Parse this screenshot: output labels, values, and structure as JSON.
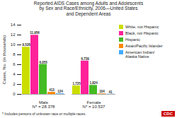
{
  "chart_data": {
    "type": "bar",
    "title": "Reported AIDS Cases among Adults and Adolescents\nby Sex and Race/Ethnicity, 2006—United States\nand Dependent Areas",
    "categories": [
      "Male\nN* = 28,378",
      "Female\nN* = 10,537"
    ],
    "series": [
      {
        "name": "White, not Hispanic",
        "color": "#ccdd00",
        "values": [
          9.528,
          1.725
        ],
        "value_labels": [
          "9,528",
          "1,725"
        ]
      },
      {
        "name": "Black, not Hispanic",
        "color": "#ff2299",
        "values": [
          11.956,
          6.739
        ],
        "value_labels": [
          "11,956",
          "6,739"
        ]
      },
      {
        "name": "Hispanic",
        "color": "#44bb22",
        "values": [
          6.055,
          1.824
        ],
        "value_labels": [
          "6,055",
          "1,824"
        ]
      },
      {
        "name": "Asian/Pacific Islander",
        "color": "#ff8800",
        "values": [
          0.413,
          0.104
        ],
        "value_labels": [
          "413",
          "104"
        ]
      },
      {
        "name": "American Indian/\nAlaska Native",
        "color": "#44aaff",
        "values": [
          0.124,
          0.041
        ],
        "value_labels": [
          "124",
          "41"
        ]
      }
    ],
    "ylabel": "Cases, No. (in thousands)",
    "ylim": [
      0,
      14
    ],
    "yticks": [
      0,
      2,
      4,
      6,
      8,
      10,
      12,
      14
    ],
    "grid": false,
    "legend": "right",
    "data_labels": true,
    "annotations": [
      "* Includes persons of unknown race or multiple races.",
      "CDC"
    ]
  }
}
